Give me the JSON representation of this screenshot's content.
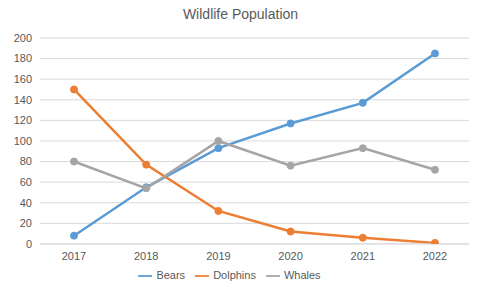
{
  "chart_data": {
    "type": "line",
    "title": "Wildlife Population",
    "categories": [
      "2017",
      "2018",
      "2019",
      "2020",
      "2021",
      "2022"
    ],
    "series": [
      {
        "name": "Bears",
        "color": "#5b9bd5",
        "marker": "circle",
        "values": [
          8,
          55,
          93,
          117,
          137,
          185
        ]
      },
      {
        "name": "Dolphins",
        "color": "#ed7d31",
        "marker": "circle",
        "values": [
          150,
          77,
          32,
          12,
          6,
          1
        ]
      },
      {
        "name": "Whales",
        "color": "#a5a5a5",
        "marker": "circle",
        "values": [
          80,
          54,
          100,
          76,
          93,
          72
        ]
      }
    ],
    "ylim": [
      0,
      200
    ],
    "yticks": [
      0,
      20,
      40,
      60,
      80,
      100,
      120,
      140,
      160,
      180,
      200
    ],
    "grid": true,
    "legend": "bottom"
  }
}
